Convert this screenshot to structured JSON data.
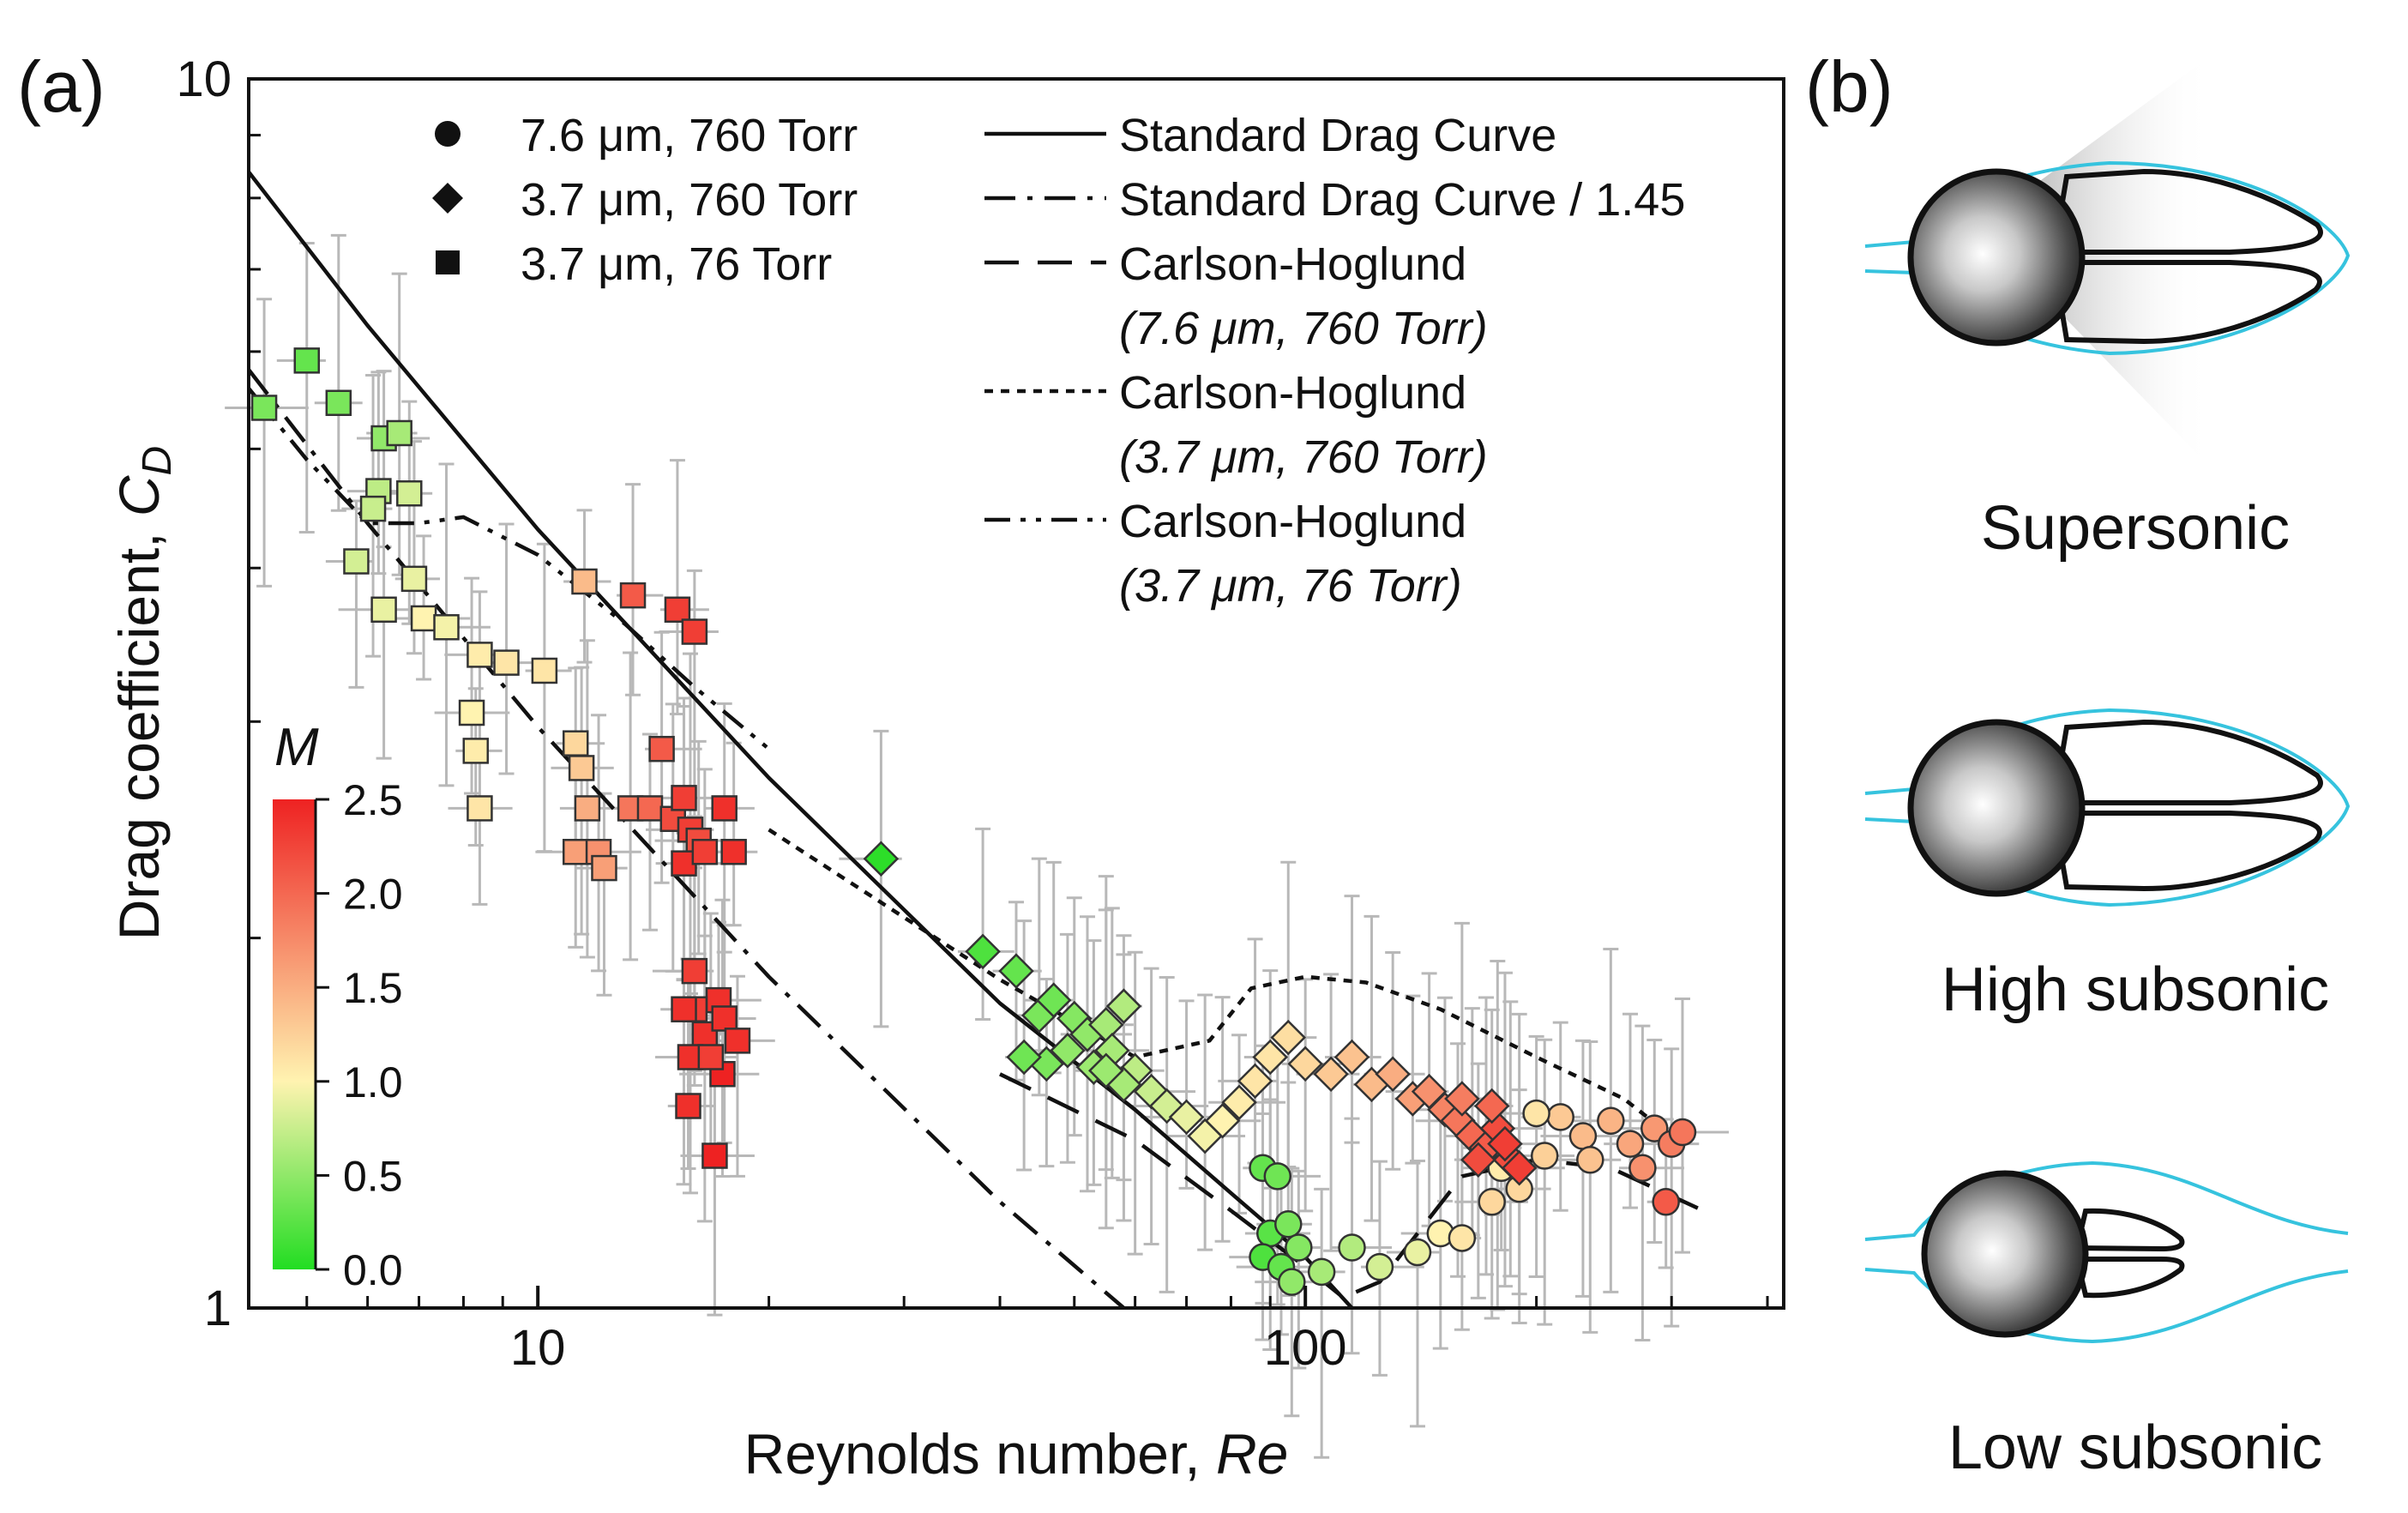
{
  "panel_a_label": "(a)",
  "panel_b_label": "(b)",
  "chart_data": {
    "type": "scatter",
    "xscale": "log",
    "yscale": "log",
    "xlim": [
      4.2,
      420
    ],
    "ylim": [
      1,
      10
    ],
    "xlabel": "Reynolds number, ",
    "xlabel_var": "Re",
    "ylabel": "Drag coefficient, ",
    "ylabel_var": "C",
    "ylabel_sub": "D",
    "xticks": [
      {
        "value": 10,
        "label": "10"
      },
      {
        "value": 100,
        "label": "100"
      }
    ],
    "yticks": [
      {
        "value": 1,
        "label": "1"
      },
      {
        "value": 10,
        "label": "10"
      }
    ],
    "colorbar": {
      "title": "M",
      "min": 0,
      "max": 2.5,
      "colors": [
        "#22dd22",
        "#fff3b0",
        "#ee2222"
      ],
      "ticks": [
        {
          "value": 0,
          "label": "0.0"
        },
        {
          "value": 0.5,
          "label": "0.5"
        },
        {
          "value": 1.0,
          "label": "1.0"
        },
        {
          "value": 1.5,
          "label": "1.5"
        },
        {
          "value": 2.0,
          "label": "2.0"
        },
        {
          "value": 2.5,
          "label": "2.5"
        }
      ]
    },
    "legend_markers": [
      {
        "marker": "circle",
        "label": "7.6 μm, 760 Torr"
      },
      {
        "marker": "diamond",
        "label": "3.7 μm, 760 Torr"
      },
      {
        "marker": "square",
        "label": "3.7 μm,   76 Torr"
      }
    ],
    "legend_lines": [
      {
        "style": "solid",
        "label": "Standard Drag Curve",
        "sub": ""
      },
      {
        "style": "dashdot",
        "label": "Standard Drag Curve / 1.45",
        "sub": ""
      },
      {
        "style": "dashed",
        "label": "Carlson-Hoglund",
        "sub": "(7.6 μm, 760 Torr)"
      },
      {
        "style": "dotted",
        "label": "Carlson-Hoglund",
        "sub": "(3.7 μm, 760 Torr)"
      },
      {
        "style": "dashdotdot",
        "label": "Carlson-Hoglund",
        "sub": "(3.7 μm,  76 Torr)"
      }
    ],
    "lines": [
      {
        "name": "Standard Drag Curve",
        "style": "solid",
        "points": [
          [
            4.2,
            8.4
          ],
          [
            6,
            6.3
          ],
          [
            10,
            4.3
          ],
          [
            20,
            2.7
          ],
          [
            40,
            1.77
          ],
          [
            60,
            1.45
          ],
          [
            80,
            1.24
          ],
          [
            100,
            1.1
          ],
          [
            115,
            1.0
          ]
        ]
      },
      {
        "name": "Standard Drag Curve / 1.45",
        "style": "dashdot",
        "points": [
          [
            4.2,
            5.8
          ],
          [
            6,
            4.35
          ],
          [
            10,
            2.97
          ],
          [
            20,
            1.86
          ],
          [
            40,
            1.22
          ],
          [
            58,
            1.0
          ]
        ]
      },
      {
        "name": "Carlson-Hoglund (7.6 μm, 760 Torr)",
        "style": "dashed",
        "points": [
          [
            40,
            1.55
          ],
          [
            60,
            1.37
          ],
          [
            80,
            1.2
          ],
          [
            100,
            1.08
          ],
          [
            112,
            1.02
          ],
          [
            125,
            1.05
          ],
          [
            140,
            1.15
          ],
          [
            160,
            1.28
          ],
          [
            200,
            1.32
          ],
          [
            250,
            1.3
          ],
          [
            330,
            1.2
          ]
        ]
      },
      {
        "name": "Carlson-Hoglund (3.7 μm, 760 Torr)",
        "style": "dotted",
        "points": [
          [
            20,
            2.45
          ],
          [
            40,
            1.85
          ],
          [
            60,
            1.6
          ],
          [
            75,
            1.65
          ],
          [
            85,
            1.82
          ],
          [
            100,
            1.86
          ],
          [
            120,
            1.84
          ],
          [
            150,
            1.75
          ],
          [
            200,
            1.6
          ],
          [
            260,
            1.48
          ],
          [
            300,
            1.38
          ]
        ]
      },
      {
        "name": "Carlson-Hoglund (3.7 μm, 76 Torr)",
        "style": "dashdotdot",
        "points": [
          [
            4.2,
            5.6
          ],
          [
            5,
            4.9
          ],
          [
            6,
            4.35
          ],
          [
            7,
            4.35
          ],
          [
            8,
            4.4
          ],
          [
            10,
            4.1
          ],
          [
            13,
            3.6
          ],
          [
            16,
            3.2
          ],
          [
            20,
            2.85
          ]
        ]
      }
    ],
    "series": [
      {
        "name": "7.6 μm, 760 Torr",
        "marker": "circle",
        "points": [
          [
            88,
            1.3,
            0.3
          ],
          [
            92,
            1.28,
            0.35
          ],
          [
            90,
            1.15,
            0.25
          ],
          [
            95,
            1.17,
            0.4
          ],
          [
            88,
            1.1,
            0.2
          ],
          [
            93,
            1.08,
            0.3
          ],
          [
            98,
            1.12,
            0.45
          ],
          [
            96,
            1.05,
            0.5
          ],
          [
            105,
            1.07,
            0.6
          ],
          [
            115,
            1.12,
            0.65
          ],
          [
            125,
            1.08,
            0.8
          ],
          [
            140,
            1.11,
            0.9
          ],
          [
            150,
            1.15,
            1.0
          ],
          [
            160,
            1.14,
            1.1
          ],
          [
            175,
            1.22,
            1.2
          ],
          [
            190,
            1.25,
            1.2
          ],
          [
            205,
            1.33,
            1.25
          ],
          [
            215,
            1.43,
            1.3
          ],
          [
            230,
            1.38,
            1.4
          ],
          [
            250,
            1.42,
            1.45
          ],
          [
            265,
            1.36,
            1.55
          ],
          [
            285,
            1.4,
            1.65
          ],
          [
            300,
            1.36,
            1.85
          ],
          [
            310,
            1.39,
            1.9
          ],
          [
            235,
            1.32,
            1.35
          ],
          [
            200,
            1.44,
            1.1
          ],
          [
            180,
            1.3,
            1.05
          ],
          [
            275,
            1.3,
            1.7
          ],
          [
            295,
            1.22,
            2.1
          ]
        ]
      },
      {
        "name": "3.7 μm, 760 Torr",
        "marker": "diamond",
        "points": [
          [
            28,
            2.32,
            0.05
          ],
          [
            38,
            1.95,
            0.2
          ],
          [
            42,
            1.88,
            0.3
          ],
          [
            45,
            1.73,
            0.4
          ],
          [
            47,
            1.78,
            0.35
          ],
          [
            50,
            1.72,
            0.45
          ],
          [
            52,
            1.67,
            0.5
          ],
          [
            55,
            1.7,
            0.6
          ],
          [
            58,
            1.76,
            0.65
          ],
          [
            46,
            1.58,
            0.4
          ],
          [
            49,
            1.62,
            0.5
          ],
          [
            53,
            1.57,
            0.55
          ],
          [
            56,
            1.62,
            0.6
          ],
          [
            60,
            1.56,
            0.7
          ],
          [
            63,
            1.5,
            0.75
          ],
          [
            66,
            1.46,
            0.8
          ],
          [
            70,
            1.43,
            0.9
          ],
          [
            74,
            1.38,
            0.95
          ],
          [
            78,
            1.42,
            1.0
          ],
          [
            82,
            1.47,
            1.05
          ],
          [
            86,
            1.53,
            1.1
          ],
          [
            90,
            1.6,
            1.1
          ],
          [
            95,
            1.66,
            1.15
          ],
          [
            100,
            1.58,
            1.2
          ],
          [
            108,
            1.55,
            1.3
          ],
          [
            115,
            1.6,
            1.35
          ],
          [
            122,
            1.52,
            1.4
          ],
          [
            130,
            1.55,
            1.5
          ],
          [
            138,
            1.48,
            1.6
          ],
          [
            145,
            1.5,
            1.7
          ],
          [
            152,
            1.45,
            1.8
          ],
          [
            158,
            1.42,
            1.9
          ],
          [
            165,
            1.38,
            2.0
          ],
          [
            172,
            1.35,
            2.1
          ],
          [
            178,
            1.4,
            2.2
          ],
          [
            185,
            1.32,
            2.2
          ],
          [
            190,
            1.3,
            2.3
          ],
          [
            175,
            1.46,
            2.0
          ],
          [
            182,
            1.36,
            2.3
          ],
          [
            168,
            1.32,
            2.2
          ],
          [
            160,
            1.48,
            1.85
          ],
          [
            58,
            1.52,
            0.6
          ],
          [
            55,
            1.56,
            0.55
          ],
          [
            43,
            1.6,
            0.35
          ]
        ]
      },
      {
        "name": "3.7 μm, 76 Torr",
        "marker": "square",
        "points": [
          [
            4.4,
            5.4,
            0.4
          ],
          [
            5,
            5.9,
            0.3
          ],
          [
            5.5,
            5.45,
            0.4
          ],
          [
            6.3,
            5.1,
            0.5
          ],
          [
            6.6,
            5.15,
            0.6
          ],
          [
            6.2,
            4.62,
            0.7
          ],
          [
            6.8,
            4.6,
            0.8
          ],
          [
            6.1,
            4.47,
            0.75
          ],
          [
            5.8,
            4.05,
            0.8
          ],
          [
            6.9,
            3.92,
            0.9
          ],
          [
            6.3,
            3.7,
            0.9
          ],
          [
            7.1,
            3.64,
            1.0
          ],
          [
            7.6,
            3.58,
            0.95
          ],
          [
            8.4,
            3.4,
            1.05
          ],
          [
            9.1,
            3.35,
            1.1
          ],
          [
            8.2,
            3.05,
            1.0
          ],
          [
            8.3,
            2.84,
            1.05
          ],
          [
            8.4,
            2.55,
            1.1
          ],
          [
            10.2,
            3.3,
            1.1
          ],
          [
            11.5,
            3.9,
            1.4
          ],
          [
            11.2,
            2.88,
            1.2
          ],
          [
            11.4,
            2.75,
            1.3
          ],
          [
            11.6,
            2.55,
            1.5
          ],
          [
            11.2,
            2.35,
            1.6
          ],
          [
            12,
            2.35,
            1.7
          ],
          [
            12.2,
            2.28,
            1.6
          ],
          [
            13.2,
            2.55,
            1.9
          ],
          [
            14,
            2.55,
            2.0
          ],
          [
            13.3,
            3.8,
            2.1
          ],
          [
            15.2,
            3.7,
            2.3
          ],
          [
            14.5,
            2.85,
            2.1
          ],
          [
            15,
            2.5,
            2.2
          ],
          [
            15.8,
            2.45,
            2.3
          ],
          [
            16.2,
            2.4,
            2.2
          ],
          [
            15.5,
            2.3,
            2.4
          ],
          [
            16.5,
            2.35,
            2.3
          ],
          [
            17.5,
            2.55,
            2.4
          ],
          [
            18,
            2.35,
            2.4
          ],
          [
            16,
            3.55,
            2.3
          ],
          [
            15.5,
            2.6,
            2.3
          ],
          [
            16,
            1.88,
            2.3
          ],
          [
            17.2,
            1.78,
            2.4
          ],
          [
            16,
            1.75,
            2.3
          ],
          [
            16.5,
            1.67,
            2.4
          ],
          [
            15.8,
            1.6,
            2.4
          ],
          [
            17.5,
            1.72,
            2.4
          ],
          [
            18.2,
            1.65,
            2.4
          ],
          [
            17.4,
            1.55,
            2.5
          ],
          [
            15.7,
            1.46,
            2.4
          ],
          [
            17,
            1.33,
            2.5
          ],
          [
            15.5,
            1.75,
            2.4
          ],
          [
            16.8,
            1.6,
            2.3
          ]
        ]
      }
    ]
  },
  "panel_b": {
    "labels": [
      "Supersonic",
      "High subsonic",
      "Low subsonic"
    ]
  }
}
